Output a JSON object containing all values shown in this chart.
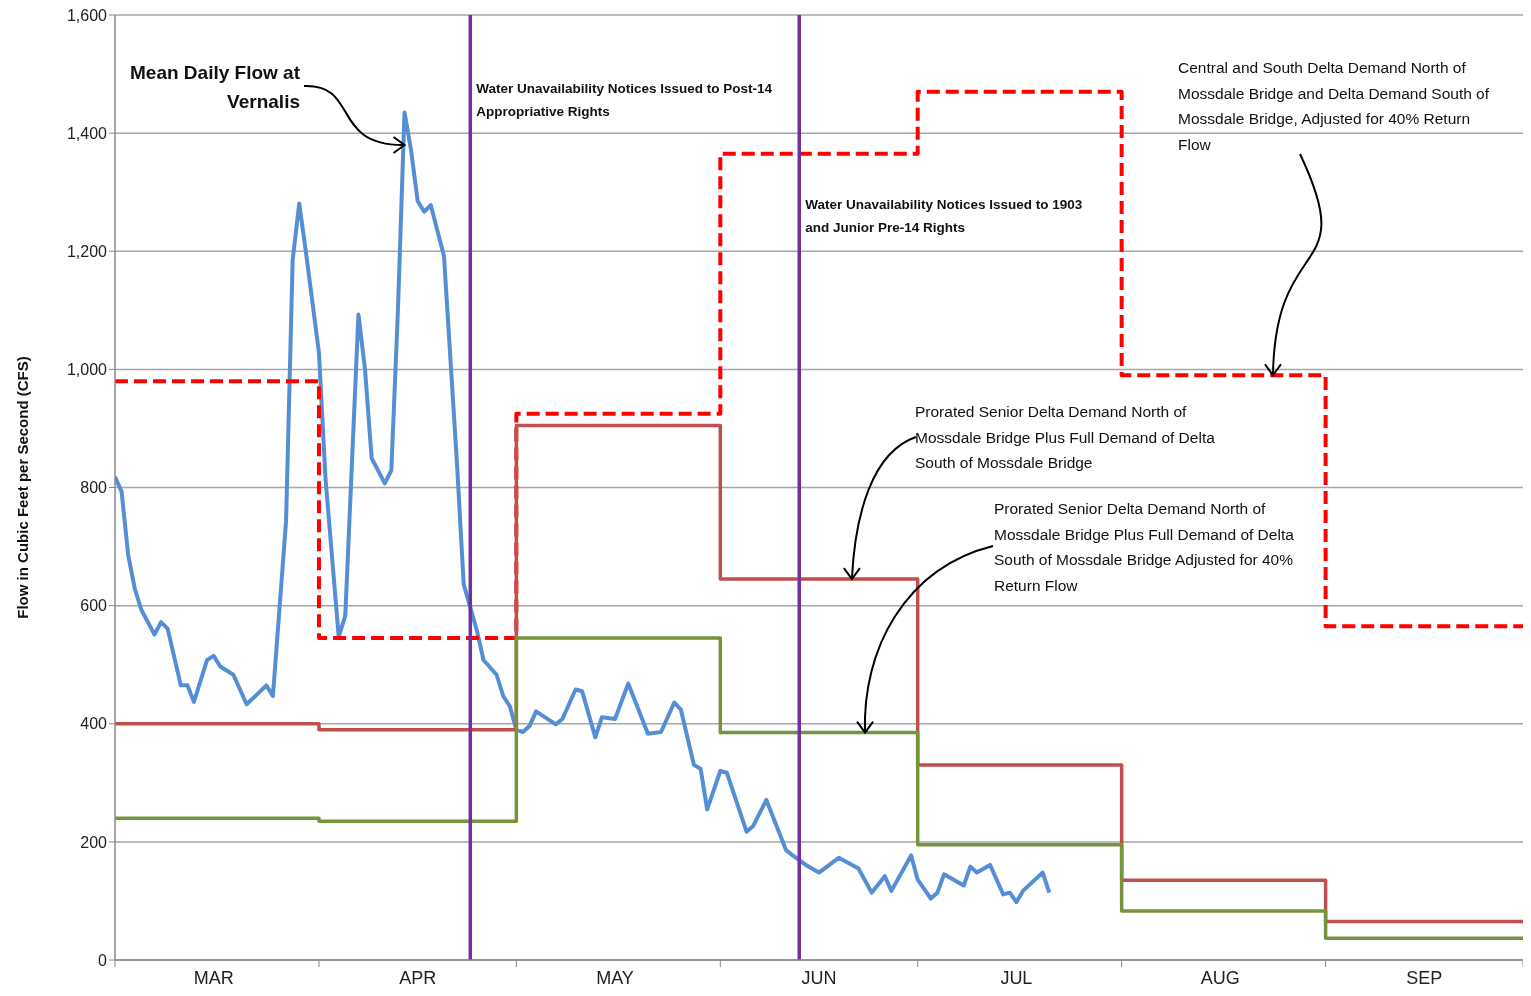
{
  "chart_data": {
    "type": "line",
    "ylabel": "Flow in Cubic Feet per Second (CFS)",
    "xlim": [
      "--03-01",
      "--10-01"
    ],
    "xticks": [
      {
        "value": "--03-01",
        "label": null
      },
      {
        "value": "--03-16",
        "label": "MAR"
      },
      {
        "value": "--04-01",
        "label": null
      },
      {
        "value": "--04-16",
        "label": "APR"
      },
      {
        "value": "--05-01",
        "label": null
      },
      {
        "value": "--05-16",
        "label": "MAY"
      },
      {
        "value": "--06-01",
        "label": null
      },
      {
        "value": "--06-16",
        "label": "JUN"
      },
      {
        "value": "--07-01",
        "label": null
      },
      {
        "value": "--07-16",
        "label": "JUL"
      },
      {
        "value": "--08-01",
        "label": null
      },
      {
        "value": "--08-16",
        "label": "AUG"
      },
      {
        "value": "--09-01",
        "label": null
      },
      {
        "value": "--09-16",
        "label": "SEP"
      },
      {
        "value": "--10-01",
        "label": null
      }
    ],
    "ylim": [
      0,
      1600
    ],
    "yticks": [
      0,
      200,
      400,
      600,
      800,
      {
        "value": 1000,
        "label": "1,000"
      },
      {
        "value": 1200,
        "label": "1,200"
      },
      {
        "value": 1400,
        "label": "1,400"
      },
      {
        "value": 1600,
        "label": "1,600"
      }
    ],
    "grid": "y",
    "annotations": [
      {
        "text": "Mean Daily Flow at Vernalis",
        "x": "--04-14",
        "y": 1380
      },
      {
        "text": "Central and South Delta Demand North of Mossdale Bridge and Delta Demand South of Mossdale Bridge, Adjusted for 40% Return Flow",
        "x": "--08-24",
        "y": 990
      },
      {
        "text": "Prorated Senior Delta Demand North of Mossdale Bridge Plus Full Demand of Delta South of Mossdale Bridge",
        "x": "--06-21",
        "y": 645
      },
      {
        "text": "Prorated Senior Delta Demand North of Mossdale Bridge Plus Full Demand of Delta South of Mossdale Bridge Adjusted for 40% Return Flow",
        "x": "--06-23",
        "y": 385
      }
    ],
    "line_style": "solid",
    "ref_lines": [
      {
        "axis": "x",
        "value": "--04-24",
        "label": "Water Unavailability Notices Issued to Post-14 Appropriative Rights",
        "color": "#7030a0"
      },
      {
        "axis": "x",
        "value": "--06-13",
        "label": "Water Unavailability Notices Issued to 1903 and Junior Pre-14 Rights",
        "color": "#7030a0"
      }
    ],
    "series": [
      {
        "color": "#558ed5",
        "x": [
          "--03-01",
          "--03-02",
          "--03-03",
          "--03-04",
          "--03-05",
          "--03-07",
          "--03-08",
          "--03-09",
          "--03-11",
          "--03-12",
          "--03-13",
          "--03-15",
          "--03-16",
          "--03-17",
          "--03-19",
          "--03-21",
          "--03-23",
          "--03-24",
          "--03-25",
          "--03-27",
          "--03-28",
          "--03-29",
          "--03-30",
          "--04-01",
          "--04-02",
          "--04-04",
          "--04-05",
          "--04-07",
          "--04-08",
          "--04-09",
          "--04-11",
          "--04-12",
          "--04-13",
          "--04-14",
          "--04-15",
          "--04-16",
          "--04-17",
          "--04-18",
          "--04-20",
          "--04-21",
          "--04-22",
          "--04-23",
          "--04-25",
          "--04-26",
          "--04-28",
          "--04-29",
          "--04-30",
          "--05-01",
          "--05-02",
          "--05-03",
          "--05-04",
          "--05-07",
          "--05-08",
          "--05-10",
          "--05-11",
          "--05-13",
          "--05-14",
          "--05-16",
          "--05-18",
          "--05-21",
          "--05-23",
          "--05-25",
          "--05-26",
          "--05-28",
          "--05-29",
          "--05-30",
          "--06-01",
          "--06-02",
          "--06-05",
          "--06-06",
          "--06-08",
          "--06-11",
          "--06-12",
          "--06-14",
          "--06-16",
          "--06-19",
          "--06-22",
          "--06-24",
          "--06-26",
          "--06-27",
          "--06-30",
          "--07-01",
          "--07-03",
          "--07-04",
          "--07-05",
          "--07-08",
          "--07-09",
          "--07-10",
          "--07-12",
          "--07-14",
          "--07-15",
          "--07-16",
          "--07-17",
          "--07-20",
          "--07-21"
        ],
        "values": [
          818,
          793,
          686,
          629,
          593,
          551,
          572,
          561,
          465,
          465,
          437,
          508,
          515,
          497,
          483,
          433,
          454,
          465,
          447,
          743,
          1185,
          1281,
          1200,
          1028,
          814,
          547,
          583,
          1093,
          1000,
          850,
          807,
          829,
          1100,
          1435,
          1371,
          1285,
          1267,
          1278,
          1192,
          1014,
          836,
          636,
          558,
          508,
          483,
          447,
          430,
          390,
          386,
          396,
          421,
          399,
          408,
          458,
          455,
          377,
          411,
          408,
          468,
          383,
          386,
          436,
          424,
          330,
          324,
          255,
          320,
          317,
          217,
          227,
          271,
          186,
          177,
          161,
          148,
          173,
          155,
          114,
          142,
          117,
          177,
          136,
          104,
          114,
          145,
          126,
          158,
          148,
          161,
          111,
          114,
          98,
          117,
          148,
          114
        ]
      },
      {
        "type": "step",
        "line_style": "dashed",
        "color": "#ff0000",
        "x": [
          "--03-01",
          "--04-01",
          "--05-01",
          "--06-01",
          "--07-01",
          "--08-01",
          "--09-01",
          "--10-01"
        ],
        "values": [
          980,
          545,
          925,
          1365,
          1470,
          990,
          565,
          565
        ]
      },
      {
        "type": "step",
        "color": "#c0504d",
        "x": [
          "--03-01",
          "--04-01",
          "--05-01",
          "--06-01",
          "--07-01",
          "--08-01",
          "--09-01",
          "--10-01"
        ],
        "values": [
          400,
          390,
          905,
          645,
          330,
          135,
          65,
          65
        ]
      },
      {
        "type": "step",
        "color": "#77933c",
        "x": [
          "--03-01",
          "--04-01",
          "--05-01",
          "--06-01",
          "--07-01",
          "--08-01",
          "--09-01",
          "--10-01"
        ],
        "values": [
          240,
          235,
          545,
          385,
          195,
          83,
          37,
          37
        ]
      }
    ]
  }
}
